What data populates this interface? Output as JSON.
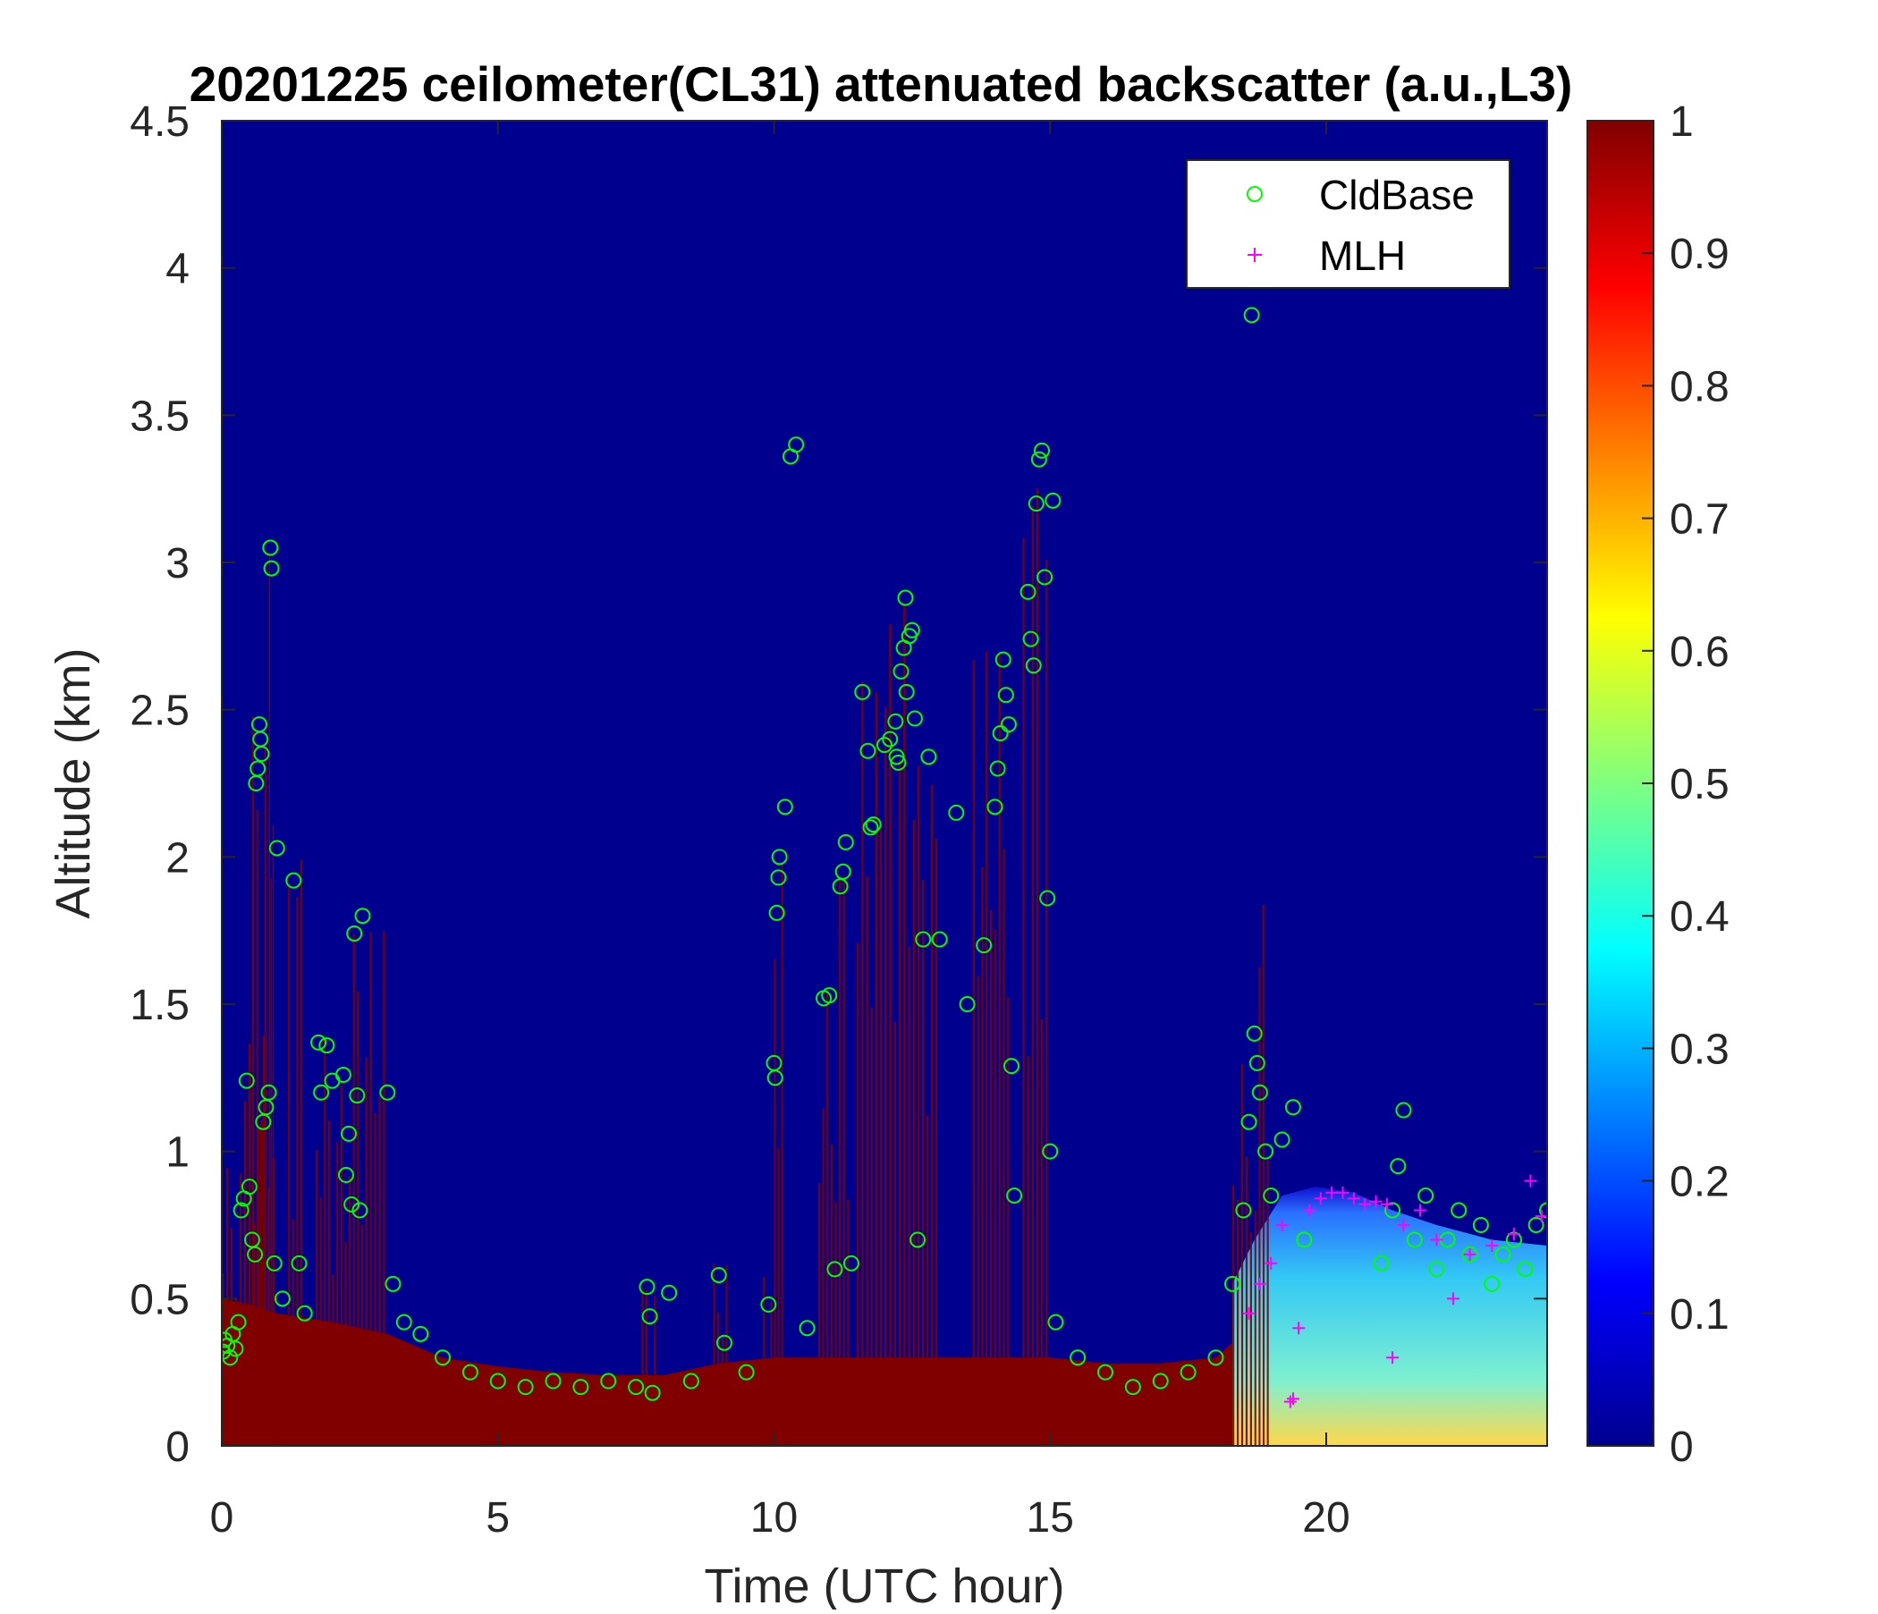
{
  "chart_data": {
    "type": "heatmap",
    "title": "20201225 ceilometer(CL31) attenuated backscatter (a.u.,L3)",
    "xlabel": "Time (UTC hour)",
    "ylabel": "Altitude (km)",
    "xlim": [
      0,
      24
    ],
    "ylim": [
      0,
      4.5
    ],
    "x_ticks": [
      0,
      5,
      10,
      15,
      20
    ],
    "x_tick_labels": [
      "0",
      "5",
      "10",
      "15",
      "20"
    ],
    "y_ticks": [
      0,
      0.5,
      1,
      1.5,
      2,
      2.5,
      3,
      3.5,
      4,
      4.5
    ],
    "y_tick_labels": [
      "0",
      "0.5",
      "1",
      "1.5",
      "2",
      "2.5",
      "3",
      "3.5",
      "4",
      "4.5"
    ],
    "colorbar": {
      "colormap": "jet",
      "range": [
        0,
        1
      ],
      "ticks": [
        0,
        0.1,
        0.2,
        0.3,
        0.4,
        0.5,
        0.6,
        0.7,
        0.8,
        0.9,
        1
      ],
      "tick_labels": [
        "0",
        "0.1",
        "0.2",
        "0.3",
        "0.4",
        "0.5",
        "0.6",
        "0.7",
        "0.8",
        "0.9",
        "1"
      ]
    },
    "colors": {
      "background": "#00008f",
      "saturated": "#800000",
      "cldbase_marker": "#00ff00",
      "mlh_marker": "#ff00ff"
    },
    "legend": {
      "position": "top-right",
      "entries": [
        {
          "label": "CldBase",
          "marker": "circle",
          "color": "#00ff00"
        },
        {
          "label": "MLH",
          "marker": "plus",
          "color": "#ff00ff"
        }
      ]
    },
    "surface_layer_top": [
      [
        0,
        0.5
      ],
      [
        0.5,
        0.48
      ],
      [
        1,
        0.45
      ],
      [
        2,
        0.42
      ],
      [
        3,
        0.38
      ],
      [
        4,
        0.3
      ],
      [
        5,
        0.27
      ],
      [
        6,
        0.25
      ],
      [
        7,
        0.24
      ],
      [
        8,
        0.24
      ],
      [
        9,
        0.28
      ],
      [
        10,
        0.3
      ],
      [
        11,
        0.3
      ],
      [
        12,
        0.3
      ],
      [
        13,
        0.3
      ],
      [
        14,
        0.3
      ],
      [
        15,
        0.3
      ],
      [
        16,
        0.28
      ],
      [
        17,
        0.28
      ],
      [
        18,
        0.3
      ],
      [
        18.3,
        0.35
      ]
    ],
    "clear_air_mixed_layer": [
      [
        18.3,
        0.55
      ],
      [
        18.7,
        0.7
      ],
      [
        19.2,
        0.85
      ],
      [
        19.8,
        0.88
      ],
      [
        20.5,
        0.86
      ],
      [
        21.2,
        0.8
      ],
      [
        22,
        0.75
      ],
      [
        23,
        0.7
      ],
      [
        24,
        0.68
      ]
    ],
    "cloud_columns": [
      {
        "x": [
          0.0,
          0.4
        ],
        "top": 0.95
      },
      {
        "x": [
          0.4,
          1.0
        ],
        "top": 1.4
      },
      {
        "x": [
          0.55,
          0.85
        ],
        "top": 2.55
      },
      {
        "x": [
          0.85,
          0.95
        ],
        "top": 3.05
      },
      {
        "x": [
          1.2,
          1.5
        ],
        "top": 2.1
      },
      {
        "x": [
          1.7,
          2.0
        ],
        "top": 1.4
      },
      {
        "x": [
          2.0,
          2.3
        ],
        "top": 1.25
      },
      {
        "x": [
          2.3,
          2.6
        ],
        "top": 1.8
      },
      {
        "x": [
          2.6,
          3.0
        ],
        "top": 1.75
      },
      {
        "x": [
          7.6,
          7.9
        ],
        "top": 0.58
      },
      {
        "x": [
          8.9,
          9.2
        ],
        "top": 0.62
      },
      {
        "x": [
          9.8,
          10.0
        ],
        "top": 0.6
      },
      {
        "x": [
          10.0,
          10.2
        ],
        "top": 2.05
      },
      {
        "x": [
          10.8,
          11.1
        ],
        "top": 1.55
      },
      {
        "x": [
          11.1,
          11.4
        ],
        "top": 2.1
      },
      {
        "x": [
          11.5,
          12.0
        ],
        "top": 2.6
      },
      {
        "x": [
          12.0,
          12.6
        ],
        "top": 2.9
      },
      {
        "x": [
          12.6,
          13.0
        ],
        "top": 2.35
      },
      {
        "x": [
          13.6,
          14.3
        ],
        "top": 2.7
      },
      {
        "x": [
          14.5,
          15.0
        ],
        "top": 3.5
      },
      {
        "x": [
          18.3,
          18.7
        ],
        "top": 1.3
      },
      {
        "x": [
          18.7,
          19.0
        ],
        "top": 1.9
      }
    ],
    "cldbase_points": [
      [
        0.02,
        0.32
      ],
      [
        0.05,
        0.36
      ],
      [
        0.1,
        0.34
      ],
      [
        0.15,
        0.3
      ],
      [
        0.2,
        0.38
      ],
      [
        0.25,
        0.33
      ],
      [
        0.3,
        0.42
      ],
      [
        0.35,
        0.8
      ],
      [
        0.4,
        0.84
      ],
      [
        0.45,
        1.24
      ],
      [
        0.5,
        0.88
      ],
      [
        0.55,
        0.7
      ],
      [
        0.6,
        0.65
      ],
      [
        0.62,
        2.25
      ],
      [
        0.65,
        2.3
      ],
      [
        0.68,
        2.45
      ],
      [
        0.7,
        2.4
      ],
      [
        0.72,
        2.35
      ],
      [
        0.75,
        1.1
      ],
      [
        0.8,
        1.15
      ],
      [
        0.85,
        1.2
      ],
      [
        0.88,
        3.05
      ],
      [
        0.9,
        2.98
      ],
      [
        0.95,
        0.62
      ],
      [
        1.0,
        2.03
      ],
      [
        1.1,
        0.5
      ],
      [
        1.3,
        1.92
      ],
      [
        1.4,
        0.62
      ],
      [
        1.5,
        0.45
      ],
      [
        1.75,
        1.37
      ],
      [
        1.8,
        1.2
      ],
      [
        1.9,
        1.36
      ],
      [
        2.0,
        1.24
      ],
      [
        2.2,
        1.26
      ],
      [
        2.25,
        0.92
      ],
      [
        2.3,
        1.06
      ],
      [
        2.35,
        0.82
      ],
      [
        2.4,
        1.74
      ],
      [
        2.45,
        1.19
      ],
      [
        2.5,
        0.8
      ],
      [
        2.55,
        1.8
      ],
      [
        3.0,
        1.2
      ],
      [
        3.1,
        0.55
      ],
      [
        3.3,
        0.42
      ],
      [
        3.6,
        0.38
      ],
      [
        4.0,
        0.3
      ],
      [
        4.5,
        0.25
      ],
      [
        5.0,
        0.22
      ],
      [
        5.5,
        0.2
      ],
      [
        6.0,
        0.22
      ],
      [
        6.5,
        0.2
      ],
      [
        7.0,
        0.22
      ],
      [
        7.5,
        0.2
      ],
      [
        7.7,
        0.54
      ],
      [
        7.75,
        0.44
      ],
      [
        7.8,
        0.18
      ],
      [
        8.1,
        0.52
      ],
      [
        8.5,
        0.22
      ],
      [
        9.0,
        0.58
      ],
      [
        9.1,
        0.35
      ],
      [
        9.5,
        0.25
      ],
      [
        9.9,
        0.48
      ],
      [
        10.0,
        1.3
      ],
      [
        10.02,
        1.25
      ],
      [
        10.05,
        1.81
      ],
      [
        10.08,
        1.93
      ],
      [
        10.1,
        2.0
      ],
      [
        10.2,
        2.17
      ],
      [
        10.3,
        3.36
      ],
      [
        10.4,
        3.4
      ],
      [
        10.6,
        0.4
      ],
      [
        10.9,
        1.52
      ],
      [
        11.0,
        1.53
      ],
      [
        11.1,
        0.6
      ],
      [
        11.2,
        1.9
      ],
      [
        11.25,
        1.95
      ],
      [
        11.3,
        2.05
      ],
      [
        11.4,
        0.62
      ],
      [
        11.6,
        2.56
      ],
      [
        11.7,
        2.36
      ],
      [
        11.75,
        2.1
      ],
      [
        11.8,
        2.11
      ],
      [
        12.0,
        2.38
      ],
      [
        12.1,
        2.4
      ],
      [
        12.2,
        2.46
      ],
      [
        12.22,
        2.34
      ],
      [
        12.25,
        2.32
      ],
      [
        12.3,
        2.63
      ],
      [
        12.35,
        2.71
      ],
      [
        12.38,
        2.88
      ],
      [
        12.4,
        2.56
      ],
      [
        12.45,
        2.75
      ],
      [
        12.5,
        2.77
      ],
      [
        12.55,
        2.47
      ],
      [
        12.6,
        0.7
      ],
      [
        12.7,
        1.72
      ],
      [
        12.8,
        2.34
      ],
      [
        13.0,
        1.72
      ],
      [
        13.3,
        2.15
      ],
      [
        13.5,
        1.5
      ],
      [
        13.8,
        1.7
      ],
      [
        14.0,
        2.17
      ],
      [
        14.05,
        2.3
      ],
      [
        14.1,
        2.42
      ],
      [
        14.15,
        2.67
      ],
      [
        14.2,
        2.55
      ],
      [
        14.25,
        2.45
      ],
      [
        14.3,
        1.29
      ],
      [
        14.35,
        0.85
      ],
      [
        14.6,
        2.9
      ],
      [
        14.65,
        2.74
      ],
      [
        14.7,
        2.65
      ],
      [
        14.75,
        3.2
      ],
      [
        14.8,
        3.35
      ],
      [
        14.85,
        3.38
      ],
      [
        14.9,
        2.95
      ],
      [
        14.95,
        1.86
      ],
      [
        15.0,
        1.0
      ],
      [
        15.05,
        3.21
      ],
      [
        15.1,
        0.42
      ],
      [
        15.5,
        0.3
      ],
      [
        16.0,
        0.25
      ],
      [
        16.5,
        0.2
      ],
      [
        17.0,
        0.22
      ],
      [
        17.5,
        0.25
      ],
      [
        18.0,
        0.3
      ],
      [
        18.3,
        0.55
      ],
      [
        18.5,
        0.8
      ],
      [
        18.6,
        1.1
      ],
      [
        18.65,
        3.84
      ],
      [
        18.7,
        1.4
      ],
      [
        18.75,
        1.3
      ],
      [
        18.8,
        1.2
      ],
      [
        18.9,
        1.0
      ],
      [
        19.0,
        0.85
      ],
      [
        19.2,
        1.04
      ],
      [
        19.4,
        1.15
      ],
      [
        19.6,
        0.7
      ],
      [
        21.0,
        0.62
      ],
      [
        21.2,
        0.8
      ],
      [
        21.3,
        0.95
      ],
      [
        21.4,
        1.14
      ],
      [
        21.6,
        0.7
      ],
      [
        21.8,
        0.85
      ],
      [
        22.0,
        0.6
      ],
      [
        22.2,
        0.7
      ],
      [
        22.4,
        0.8
      ],
      [
        22.6,
        0.65
      ],
      [
        22.8,
        0.75
      ],
      [
        23.0,
        0.55
      ],
      [
        23.2,
        0.65
      ],
      [
        23.4,
        0.7
      ],
      [
        23.6,
        0.6
      ],
      [
        23.8,
        0.75
      ],
      [
        24.0,
        0.8
      ]
    ],
    "mlh_points": [
      [
        18.6,
        0.45
      ],
      [
        18.8,
        0.55
      ],
      [
        19.0,
        0.62
      ],
      [
        19.2,
        0.75
      ],
      [
        19.35,
        0.15
      ],
      [
        19.4,
        0.16
      ],
      [
        19.5,
        0.4
      ],
      [
        19.7,
        0.8
      ],
      [
        19.9,
        0.84
      ],
      [
        20.1,
        0.86
      ],
      [
        20.3,
        0.86
      ],
      [
        20.5,
        0.84
      ],
      [
        20.7,
        0.82
      ],
      [
        20.9,
        0.83
      ],
      [
        21.1,
        0.82
      ],
      [
        21.2,
        0.3
      ],
      [
        21.4,
        0.75
      ],
      [
        21.7,
        0.8
      ],
      [
        22.0,
        0.7
      ],
      [
        22.3,
        0.5
      ],
      [
        22.6,
        0.65
      ],
      [
        23.0,
        0.68
      ],
      [
        23.4,
        0.72
      ],
      [
        23.7,
        0.9
      ],
      [
        23.9,
        0.78
      ]
    ]
  }
}
